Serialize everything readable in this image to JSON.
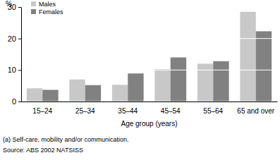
{
  "chart_data": {
    "type": "bar",
    "y_label": "%",
    "x_label": "Age group (years)",
    "categories": [
      "15–24",
      "25–34",
      "35–44",
      "45–54",
      "55–64",
      "65 and over"
    ],
    "series": [
      {
        "name": "Males",
        "color": "#c8c8c8",
        "values": [
          4.2,
          7.0,
          5.3,
          10.3,
          12.0,
          28.5
        ]
      },
      {
        "name": "Females",
        "color": "#818181",
        "values": [
          3.7,
          5.2,
          8.9,
          14.0,
          12.8,
          22.3
        ]
      }
    ],
    "ylim": [
      0,
      30
    ],
    "yticks": [
      0,
      10,
      20,
      30
    ],
    "grid": true,
    "legend": "top-left",
    "footnotes": [
      "(a) Self-care, mobility and/or communication.",
      "Source: ABS 2002 NATSISS"
    ]
  }
}
